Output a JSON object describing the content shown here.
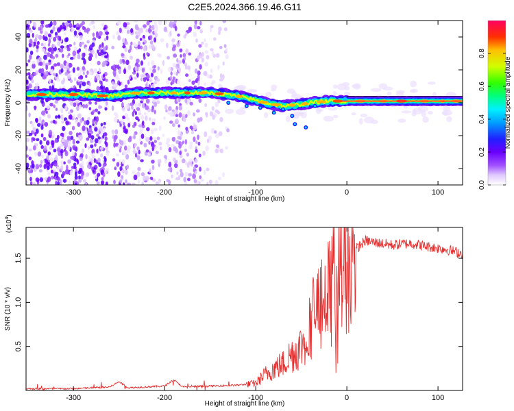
{
  "title": "C2E5.2024.366.19.46.G11",
  "colors": {
    "snr_line": "#e53030",
    "ridge_line": "#000000",
    "colormap": [
      "#ffffff",
      "#e8d8ff",
      "#b070ff",
      "#7a00ff",
      "#3a00ff",
      "#0040ff",
      "#00d0ff",
      "#00ff90",
      "#40ff00",
      "#c8ff00",
      "#ffd000",
      "#ff4000",
      "#ff0040"
    ]
  },
  "chart_data": [
    {
      "type": "heatmap",
      "xlabel": "Height of straight line (km)",
      "ylabel": "Frequency (Hz)",
      "xlim": [
        -352,
        127
      ],
      "ylim": [
        -50,
        50
      ],
      "xticks": [
        -300,
        -200,
        -100,
        0,
        100
      ],
      "yticks": [
        -40,
        -20,
        0,
        20,
        40
      ],
      "grid": false,
      "colorbar": {
        "label": "Normalized spectral amplitude",
        "range": [
          0,
          1
        ],
        "ticks": [
          "0.0",
          "0.2",
          "0.4",
          "0.6",
          "0.8"
        ]
      },
      "ridge": {
        "x": [
          -350,
          -300,
          -260,
          -230,
          -200,
          -150,
          -130,
          -110,
          -90,
          -70,
          -50,
          -40,
          -20,
          0,
          50,
          100,
          127
        ],
        "y": [
          5,
          5,
          4,
          6,
          6,
          6,
          5,
          3,
          0,
          -2,
          -1,
          0,
          1,
          1,
          1,
          1,
          1
        ]
      }
    },
    {
      "type": "line",
      "xlabel": "Height of straight line (km)",
      "ylabel": "SNR (10 * v/v)",
      "yscale_label": "(x10",
      "yscale_exp": "4",
      "xlim": [
        -352,
        127
      ],
      "ylim": [
        0,
        1.85
      ],
      "xticks": [
        -300,
        -200,
        -100,
        0,
        100
      ],
      "yticks": [
        "0.5",
        "1.0",
        "1.5"
      ],
      "grid": false,
      "series": [
        {
          "x": [
            -352,
            -300,
            -260,
            -250,
            -240,
            -200,
            -190,
            -180,
            -150,
            -120,
            -100,
            -90,
            -80,
            -70,
            -60,
            -50,
            -40,
            -35,
            -30,
            -25,
            -20,
            -15,
            -10,
            -5,
            0,
            10,
            20,
            30,
            50,
            70,
            90,
            110,
            127
          ],
          "y": [
            0.02,
            0.02,
            0.04,
            0.1,
            0.03,
            0.05,
            0.12,
            0.04,
            0.05,
            0.06,
            0.08,
            0.18,
            0.25,
            0.3,
            0.42,
            0.5,
            0.7,
            1.0,
            0.9,
            1.2,
            1.1,
            1.35,
            1.3,
            1.45,
            1.4,
            1.6,
            1.7,
            1.68,
            1.65,
            1.67,
            1.63,
            1.6,
            1.55
          ]
        }
      ]
    }
  ]
}
